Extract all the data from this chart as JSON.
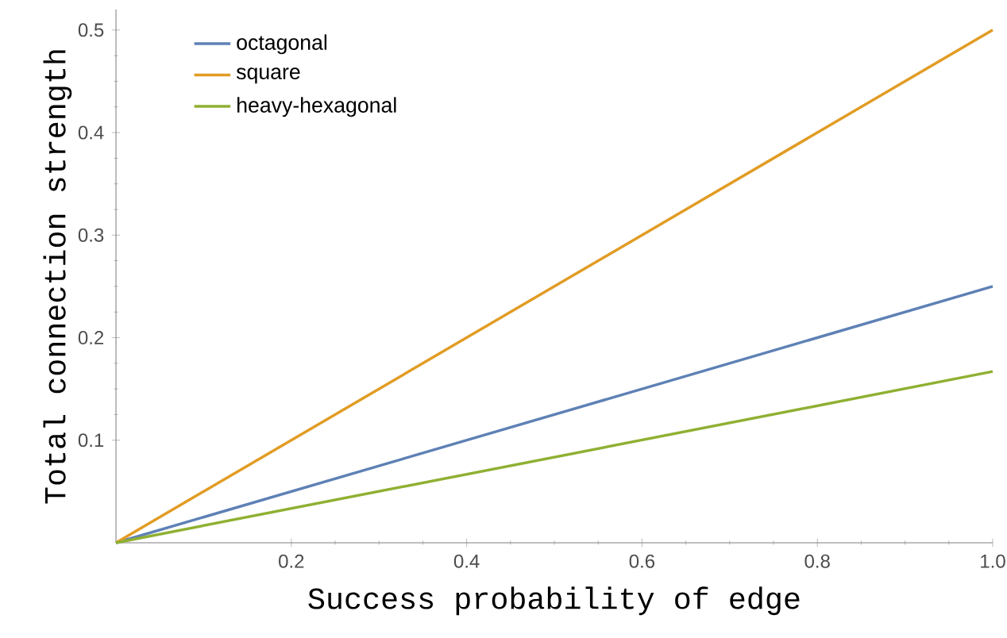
{
  "chart_data": {
    "type": "line",
    "xlabel": "Success probability of edge",
    "ylabel": "Total connection strength",
    "x": [
      0,
      1
    ],
    "series": [
      {
        "name": "octagonal",
        "color": "#5e81b5",
        "values": [
          0,
          0.25
        ]
      },
      {
        "name": "square",
        "color": "#e19c24",
        "values": [
          0,
          0.5
        ]
      },
      {
        "name": "heavy-hexagonal",
        "color": "#8fb032",
        "values": [
          0,
          0.167
        ]
      }
    ],
    "xlim": [
      0,
      1
    ],
    "ylim": [
      0,
      0.52
    ],
    "xticks": [
      0.2,
      0.4,
      0.6,
      0.8,
      {
        "value": 1,
        "label": "1.0"
      }
    ],
    "yticks": [
      0.1,
      0.2,
      0.3,
      0.4,
      0.5
    ],
    "grid": false,
    "legend": "top left",
    "marker": "none",
    "line_style": "solid"
  }
}
